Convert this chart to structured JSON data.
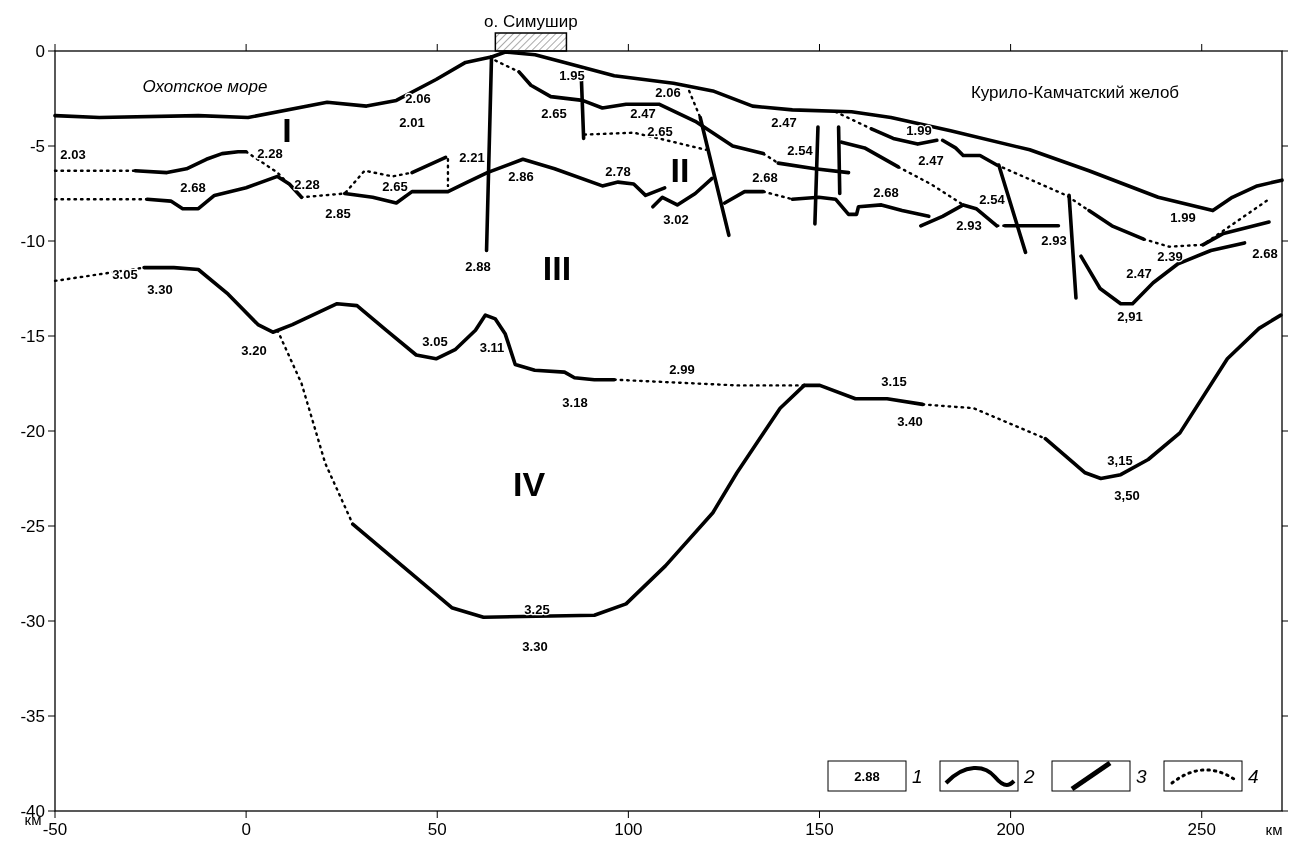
{
  "chart_data": {
    "type": "line",
    "title": "о. Симушир",
    "xlabel": "км",
    "ylabel": "км",
    "xlim": [
      -50,
      271
    ],
    "ylim": [
      -40,
      0
    ],
    "xticks": [
      -50,
      0,
      50,
      100,
      150,
      200,
      250
    ],
    "yticks": [
      0,
      -5,
      -10,
      -15,
      -20,
      -25,
      -30,
      -35,
      -40
    ],
    "grid": false,
    "legend": "bottom right",
    "marker": "none",
    "series": [
      {
        "name": "2",
        "color": "#000000",
        "line_style": "solid",
        "x": [
          -50,
          -38.4,
          -12.5,
          0.5,
          21.2,
          31.5,
          39.3,
          49.7,
          57.4,
          64.4,
          67.8,
          75.6,
          83.3,
          96.3,
          111.8,
          122.1,
          132.5,
          142.9,
          158.4,
          168.7,
          184.3,
          205,
          220.5,
          238.6,
          252.9,
          258,
          264.5,
          271
        ],
        "values": [
          -3.4,
          -3.5,
          -3.4,
          -3.5,
          -2.7,
          -2.9,
          -2.6,
          -1.5,
          -0.6,
          -0.3,
          -0.05,
          -0.2,
          -0.6,
          -1.3,
          -1.7,
          -2.1,
          -2.9,
          -3.1,
          -3.2,
          -3.5,
          -4.2,
          -5.2,
          -6.3,
          -7.7,
          -8.4,
          -7.7,
          -7.1,
          -6.8
        ]
      },
      {
        "color": "#000000",
        "line_style": "solid",
        "x": [
          -29.0,
          -20.7,
          -15.6,
          -10.4,
          -6.3,
          -2.1,
          0.0
        ],
        "values": [
          -6.3,
          -6.4,
          -6.2,
          -5.7,
          -5.4,
          -5.3,
          -5.3
        ]
      },
      {
        "color": "#000000",
        "line_style": "solid",
        "x": [
          43.4,
          52.2
        ],
        "values": [
          -6.4,
          -5.6
        ]
      },
      {
        "color": "#000000",
        "line_style": "solid",
        "x": [
          -25.9,
          -19.7,
          -16.6,
          -12.5,
          -8.3,
          0.0,
          8.2,
          11.3,
          14.5
        ],
        "values": [
          -7.8,
          -7.9,
          -8.3,
          -8.3,
          -7.6,
          -7.2,
          -6.6,
          -7.0,
          -7.7
        ]
      },
      {
        "color": "#000000",
        "line_style": "solid",
        "x": [
          25.8,
          33.1,
          39.3,
          43.4,
          52.8,
          57.9,
          63.1,
          72.4,
          80.7,
          93.2,
          97.3,
          101.4,
          104.5,
          109.5
        ],
        "values": [
          -7.5,
          -7.7,
          -8.0,
          -7.4,
          -7.4,
          -6.9,
          -6.4,
          -5.7,
          -6.2,
          -7.1,
          -6.9,
          -7.0,
          -7.6,
          -7.2
        ]
      },
      {
        "color": "#000000",
        "line_style": "solid",
        "x": [
          106.4,
          108.9,
          112.8,
          117.5,
          121.9
        ],
        "values": [
          -8.2,
          -7.7,
          -8.1,
          -7.5,
          -6.7
        ]
      },
      {
        "color": "#000000",
        "line_style": "solid",
        "x": [
          125.2,
          130.4,
          135.3
        ],
        "values": [
          -8.0,
          -7.4,
          -7.4
        ]
      },
      {
        "color": "#000000",
        "line_style": "solid",
        "x": [
          142.9,
          149.8,
          154.2,
          157.6,
          159.7,
          160.2,
          166.2,
          171.6,
          178.6
        ],
        "values": [
          -7.8,
          -7.7,
          -7.8,
          -8.6,
          -8.6,
          -8.2,
          -8.1,
          -8.4,
          -8.7
        ]
      },
      {
        "color": "#000000",
        "line_style": "solid",
        "x": [
          176.5,
          182.2,
          187.6,
          191.0,
          196.4
        ],
        "values": [
          -9.2,
          -8.7,
          -8.1,
          -8.3,
          -9.2
        ]
      },
      {
        "color": "#000000",
        "line_style": "solid",
        "x": [
          198.5,
          212.5
        ],
        "values": [
          -9.2,
          -9.2
        ]
      },
      {
        "color": "#000000",
        "line_style": "solid",
        "x": [
          71.4,
          74.5,
          79.7,
          88.0,
          93.2,
          99.4,
          108.0,
          117.5,
          127.3,
          135.3
        ],
        "values": [
          -1.1,
          -1.8,
          -2.4,
          -2.6,
          -3.0,
          -2.8,
          -2.8,
          -3.7,
          -5.0,
          -5.4
        ]
      },
      {
        "color": "#000000",
        "line_style": "solid",
        "x": [
          139.2,
          148.8,
          157.6
        ],
        "values": [
          -5.9,
          -6.2,
          -6.4
        ]
      },
      {
        "color": "#000000",
        "line_style": "solid",
        "x": [
          155.8,
          161.8,
          170.6
        ],
        "values": [
          -4.8,
          -5.1,
          -6.1
        ]
      },
      {
        "color": "#000000",
        "line_style": "solid",
        "x": [
          163.6,
          169.3,
          175.7,
          180.7
        ],
        "values": [
          -4.1,
          -4.6,
          -4.9,
          -4.7
        ]
      },
      {
        "color": "#000000",
        "line_style": "solid",
        "x": [
          182.2,
          185.6,
          187.6,
          192.0,
          196.4
        ],
        "values": [
          -4.7,
          -5.1,
          -5.5,
          -5.5,
          -6.0
        ]
      },
      {
        "color": "#000000",
        "line_style": "solid",
        "x": [
          220.5,
          226.5,
          234.8
        ],
        "values": [
          -8.4,
          -9.2,
          -9.9
        ]
      },
      {
        "color": "#000000",
        "line_style": "solid",
        "x": [
          250.3,
          255.7,
          267.6
        ],
        "values": [
          -10.2,
          -9.6,
          -9.0
        ]
      },
      {
        "color": "#000000",
        "line_style": "solid",
        "x": [
          218.4,
          223.4,
          228.8,
          231.9,
          237.3,
          243.8,
          252.4,
          261.2
        ],
        "values": [
          -10.8,
          -12.5,
          -13.3,
          -13.3,
          -12.2,
          -11.2,
          -10.5,
          -10.1
        ]
      },
      {
        "color": "#000000",
        "line_style": "solid",
        "x": [
          -26.7,
          -18.9,
          -12.5,
          -4.7,
          3.1,
          7.0,
          12.1,
          23.8,
          29.0,
          36.7,
          44.5,
          49.7,
          54.8,
          60.0,
          62.6,
          65.2,
          67.8,
          70.4,
          75.5,
          83.3,
          85.9,
          91.1,
          96.3
        ],
        "values": [
          -11.4,
          -11.4,
          -11.5,
          -12.8,
          -14.4,
          -14.8,
          -14.4,
          -13.3,
          -13.4,
          -14.7,
          -16.0,
          -16.2,
          -15.7,
          -14.7,
          -13.9,
          -14.1,
          -14.9,
          -16.5,
          -16.8,
          -16.9,
          -17.2,
          -17.3,
          -17.3
        ]
      },
      {
        "color": "#000000",
        "line_style": "solid",
        "x": [
          146.0,
          150.1,
          159.4,
          167.7,
          177.0
        ],
        "values": [
          -17.6,
          -17.6,
          -18.3,
          -18.3,
          -18.6
        ]
      },
      {
        "color": "#000000",
        "line_style": "solid",
        "x": [
          27.9,
          53.8,
          62.1,
          91.1,
          99.4,
          109.7,
          122.1,
          128.4,
          139.7,
          146.0
        ],
        "values": [
          -24.9,
          -29.3,
          -29.8,
          -29.7,
          -29.1,
          -27.1,
          -24.3,
          -22.2,
          -18.8,
          -17.6
        ]
      },
      {
        "color": "#000000",
        "line_style": "solid",
        "x": [
          209.1,
          219.5,
          223.6,
          228.8,
          236.0,
          244.3,
          256.7,
          265.0,
          270.7
        ],
        "values": [
          -20.4,
          -22.2,
          -22.5,
          -22.3,
          -21.5,
          -20.1,
          -16.2,
          -14.6,
          -13.9
        ]
      },
      {
        "name": "3",
        "color": "#000000",
        "line_style": "solid",
        "x": [
          64.2,
          62.9
        ],
        "values": [
          -0.3,
          -10.5
        ]
      },
      {
        "color": "#000000",
        "line_style": "solid",
        "x": [
          87.7,
          88.3
        ],
        "values": [
          -1.4,
          -4.6
        ]
      },
      {
        "color": "#000000",
        "line_style": "solid",
        "x": [
          118.8,
          126.3
        ],
        "values": [
          -3.5,
          -9.7
        ]
      },
      {
        "color": "#000000",
        "line_style": "solid",
        "x": [
          149.6,
          148.8
        ],
        "values": [
          -4.0,
          -9.1
        ]
      },
      {
        "color": "#000000",
        "line_style": "solid",
        "x": [
          155.0,
          155.3
        ],
        "values": [
          -4.0,
          -7.5
        ]
      },
      {
        "color": "#000000",
        "line_style": "solid",
        "x": [
          196.9,
          203.9
        ],
        "values": [
          -6.0,
          -10.6
        ]
      },
      {
        "color": "#000000",
        "line_style": "solid",
        "x": [
          215.3,
          217.1
        ],
        "values": [
          -7.6,
          -13.0
        ]
      },
      {
        "name": "4",
        "color": "#000000",
        "line_style": "dotted",
        "x": [
          -50,
          -29.0
        ],
        "values": [
          -6.3,
          -6.3
        ]
      },
      {
        "color": "#000000",
        "line_style": "dotted",
        "x": [
          0,
          8.2,
          14.5,
          25.8,
          31.0,
          38.3,
          43.4
        ],
        "values": [
          -5.3,
          -6.4,
          -7.7,
          -7.5,
          -6.3,
          -6.6,
          -6.4
        ]
      },
      {
        "color": "#000000",
        "line_style": "dotted",
        "x": [
          52.8,
          52.8
        ],
        "values": [
          -5.7,
          -7.1
        ]
      },
      {
        "color": "#000000",
        "line_style": "dotted",
        "x": [
          -50,
          -25.9
        ],
        "values": [
          -7.8,
          -7.8
        ]
      },
      {
        "color": "#000000",
        "line_style": "dotted",
        "x": [
          -50,
          -26.7
        ],
        "values": [
          -12.1,
          -11.4
        ]
      },
      {
        "color": "#000000",
        "line_style": "dotted",
        "x": [
          65.2,
          71.4
        ],
        "values": [
          -0.5,
          -1.1
        ]
      },
      {
        "color": "#000000",
        "line_style": "dotted",
        "x": [
          88.5,
          101.4,
          107.9,
          120.3
        ],
        "values": [
          -4.4,
          -4.3,
          -4.6,
          -5.2
        ]
      },
      {
        "color": "#000000",
        "line_style": "dotted",
        "x": [
          115.9,
          118.8
        ],
        "values": [
          -2.1,
          -3.5
        ]
      },
      {
        "color": "#000000",
        "line_style": "dotted",
        "x": [
          135.3,
          142.9
        ],
        "values": [
          -7.4,
          -7.8
        ]
      },
      {
        "color": "#000000",
        "line_style": "dotted",
        "x": [
          135.3,
          139.2
        ],
        "values": [
          -5.4,
          -5.9
        ]
      },
      {
        "color": "#000000",
        "line_style": "dotted",
        "x": [
          154.2,
          163.6
        ],
        "values": [
          -3.2,
          -4.1
        ]
      },
      {
        "color": "#000000",
        "line_style": "dotted",
        "x": [
          170.6,
          179.1,
          187.6
        ],
        "values": [
          -6.1,
          -7.0,
          -8.1
        ]
      },
      {
        "color": "#000000",
        "line_style": "dotted",
        "x": [
          196.4,
          198.5
        ],
        "values": [
          -9.2,
          -9.2
        ]
      },
      {
        "color": "#000000",
        "line_style": "dotted",
        "x": [
          196.4,
          214.6,
          220.5
        ],
        "values": [
          -6.0,
          -7.6,
          -8.4
        ]
      },
      {
        "color": "#000000",
        "line_style": "dotted",
        "x": [
          234.8,
          241.5,
          250.3,
          267.6
        ],
        "values": [
          -9.9,
          -10.3,
          -10.2,
          -7.8
        ]
      },
      {
        "color": "#000000",
        "line_style": "dotted",
        "x": [
          96.3,
          128.4,
          146.0
        ],
        "values": [
          -17.3,
          -17.6,
          -17.6
        ]
      },
      {
        "color": "#000000",
        "line_style": "dotted",
        "x": [
          177.0,
          190.3,
          209.1
        ],
        "values": [
          -18.6,
          -18.8,
          -20.4
        ]
      },
      {
        "color": "#000000",
        "line_style": "dotted",
        "x": [
          8.2,
          14.5,
          20.7,
          27.9
        ],
        "values": [
          -14.7,
          -17.5,
          -21.7,
          -24.9
        ]
      }
    ],
    "annotations": [
      "Охотское море",
      "Курило-Камчатский желоб",
      "I",
      "II",
      "III",
      "IV",
      "2.03",
      "2.28",
      "2.68",
      "2.28",
      "2.85",
      "2.65",
      "2.21",
      "2.06",
      "2.01",
      "1.95",
      "2.65",
      "2.47",
      "2.65",
      "2.86",
      "2.78",
      "2.88",
      "2.06",
      "3.02",
      "2.68",
      "2.47",
      "2.54",
      "2.68",
      "1.99",
      "2.47",
      "2.54",
      "2.93",
      "2.93",
      "1.99",
      "2.39",
      "2.47",
      "2.68",
      "2,91",
      "3.05",
      "3.30",
      "3.20",
      "3.05",
      "3.11",
      "3.18",
      "2.99",
      "3.15",
      "3.40",
      "3,15",
      "3,50",
      "3.25",
      "3.30",
      "2.88",
      "1"
    ]
  }
}
